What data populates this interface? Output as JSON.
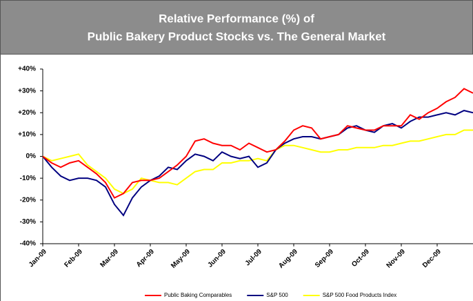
{
  "chart_data": {
    "type": "line",
    "title": [
      "Relative Performance (%) of",
      "Public Bakery Product Stocks vs. The General Market"
    ],
    "categories": [
      "Jan-09",
      null,
      null,
      null,
      "Feb-09",
      null,
      null,
      null,
      "Mar-09",
      null,
      null,
      null,
      "Apr-09",
      null,
      null,
      null,
      "May-09",
      null,
      null,
      null,
      "Jun-09",
      null,
      null,
      null,
      "Jul-09",
      null,
      null,
      null,
      "Aug-09",
      null,
      null,
      null,
      "Sep-09",
      null,
      null,
      null,
      "Oct-09",
      null,
      null,
      null,
      "Nov-09",
      null,
      null,
      null,
      "Dec-09",
      null,
      null,
      null,
      null
    ],
    "series": [
      {
        "name": "Public Baking Comparables",
        "color": "#ff0000",
        "values": [
          0,
          -3,
          -5,
          -3,
          -2,
          -5,
          -8,
          -12,
          -19,
          -17,
          -12,
          -11,
          -11,
          -10,
          -7,
          -4,
          0,
          7,
          8,
          6,
          5,
          5,
          3,
          6,
          4,
          2,
          3,
          7,
          12,
          14,
          13,
          8,
          9,
          10,
          14,
          13,
          12,
          12,
          14,
          14,
          14,
          19,
          17,
          20,
          22,
          25,
          27,
          31,
          29
        ]
      },
      {
        "name": "S&P 500",
        "color": "#000080",
        "values": [
          0,
          -5,
          -9,
          -11,
          -10,
          -10,
          -11,
          -14,
          -22,
          -27,
          -19,
          -14,
          -11,
          -9,
          -5,
          -6,
          -2,
          1,
          0,
          -2,
          2,
          0,
          -1,
          0,
          -5,
          -3,
          3,
          6,
          8,
          9,
          9,
          8,
          9,
          10,
          13,
          14,
          12,
          11,
          14,
          15,
          13,
          16,
          18,
          18,
          19,
          20,
          19,
          21,
          20
        ]
      },
      {
        "name": "S&P 500 Food Products Index",
        "color": "#ffff00",
        "values": [
          0,
          -2,
          -1,
          0,
          1,
          -4,
          -7,
          -10,
          -15,
          -17,
          -15,
          -10,
          -11,
          -12,
          -12,
          -13,
          -10,
          -7,
          -6,
          -6,
          -3,
          -3,
          -2,
          -2,
          -1,
          -2,
          3,
          5,
          5,
          4,
          3,
          2,
          2,
          3,
          3,
          4,
          4,
          4,
          5,
          5,
          6,
          7,
          7,
          8,
          9,
          10,
          10,
          12,
          12
        ]
      }
    ],
    "ylim": [
      -40,
      40
    ],
    "yticks": [
      {
        "value": -40,
        "label": "-40%"
      },
      {
        "value": -30,
        "label": "-30%"
      },
      {
        "value": -20,
        "label": "-20%"
      },
      {
        "value": -10,
        "label": "-10%"
      },
      {
        "value": 0,
        "label": "0%"
      },
      {
        "value": 10,
        "label": "+10%"
      },
      {
        "value": 20,
        "label": "+20%"
      },
      {
        "value": 30,
        "label": "+30%"
      },
      {
        "value": 40,
        "label": "+40%"
      }
    ],
    "grid": false
  }
}
